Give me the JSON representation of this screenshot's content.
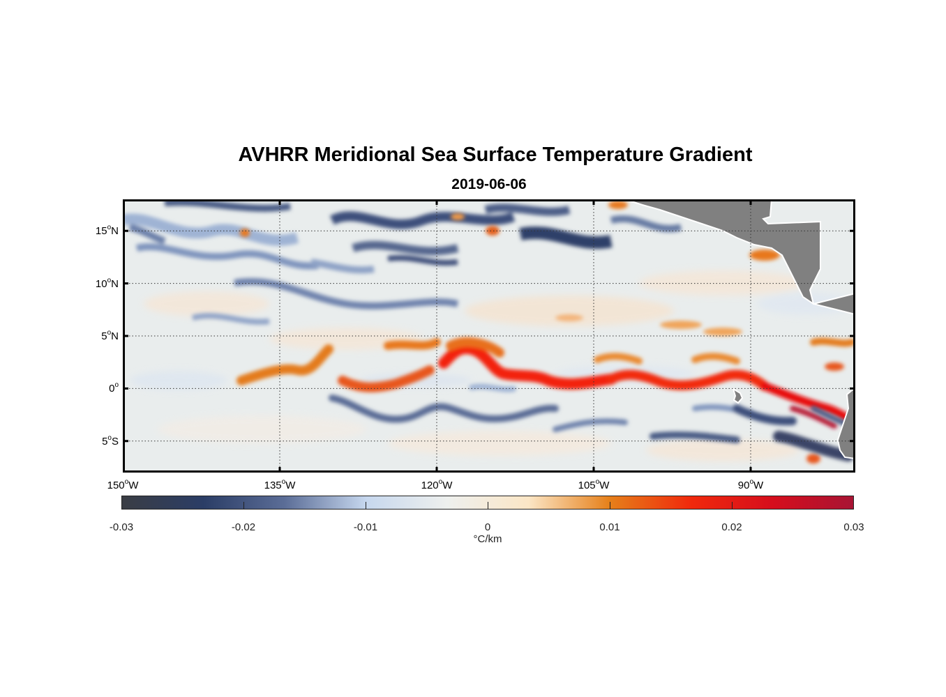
{
  "title": "AVHRR Meridional Sea Surface Temperature Gradient",
  "date": "2019-06-06",
  "map": {
    "lon_range": [
      -150,
      -80
    ],
    "lat_range": [
      -8,
      18
    ],
    "lat_ticks": [
      {
        "deg": "15",
        "hemi": "N",
        "value": 15
      },
      {
        "deg": "10",
        "hemi": "N",
        "value": 10
      },
      {
        "deg": "5",
        "hemi": "N",
        "value": 5
      },
      {
        "deg": "0",
        "hemi": "",
        "value": 0
      },
      {
        "deg": "5",
        "hemi": "S",
        "value": -5
      }
    ],
    "lon_ticks": [
      {
        "deg": "150",
        "hemi": "W",
        "value": -150
      },
      {
        "deg": "135",
        "hemi": "W",
        "value": -135
      },
      {
        "deg": "120",
        "hemi": "W",
        "value": -120
      },
      {
        "deg": "105",
        "hemi": "W",
        "value": -105
      },
      {
        "deg": "90",
        "hemi": "W",
        "value": -90
      }
    ],
    "grid": "dotted",
    "land_color": "#808080",
    "ocean_base_color": "#e8ecec"
  },
  "colorbar": {
    "min": -0.03,
    "max": 0.03,
    "ticks": [
      "-0.03",
      "-0.02",
      "-0.01",
      "0",
      "0.01",
      "0.02",
      "0.03"
    ],
    "tick_values": [
      -0.03,
      -0.02,
      -0.01,
      0,
      0.01,
      0.02,
      0.03
    ],
    "label": "°C/km",
    "colors": [
      "#3a3d44",
      "#2b3d66",
      "#5b6d97",
      "#c6d7ee",
      "#eef0ee",
      "#fbe6c6",
      "#e6801a",
      "#f0290c",
      "#d60e1c",
      "#a81434"
    ]
  }
}
